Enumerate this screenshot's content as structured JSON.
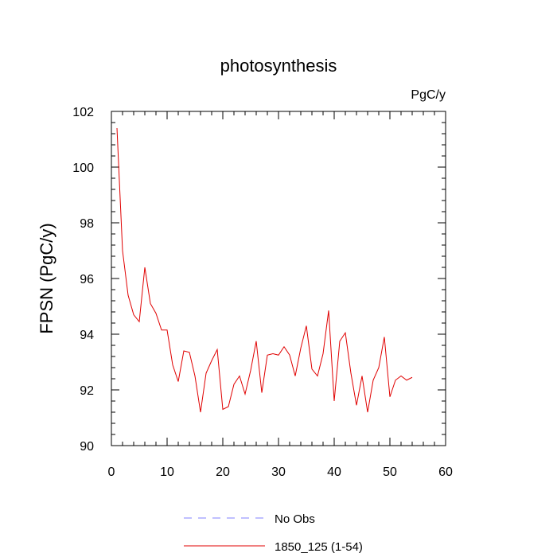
{
  "chart_data": {
    "type": "line",
    "title": "photosynthesis",
    "units": "PgC/y",
    "ylabel": "FPSN  (PgC/y)",
    "xlabel": "",
    "xlim": [
      0,
      60
    ],
    "ylim": [
      90,
      102
    ],
    "xticks": [
      0,
      10,
      20,
      30,
      40,
      50,
      60
    ],
    "yticks": [
      90,
      92,
      94,
      96,
      98,
      100,
      102
    ],
    "grid": false,
    "legend_placement": "bottom-center",
    "series": [
      {
        "name": "No Obs",
        "color": "#8080ff",
        "dashed": true,
        "values": []
      },
      {
        "name": "1850_125 (1-54)",
        "color": "#e00000",
        "dashed": false,
        "x": [
          1,
          2,
          3,
          4,
          5,
          6,
          7,
          8,
          9,
          10,
          11,
          12,
          13,
          14,
          15,
          16,
          17,
          18,
          19,
          20,
          21,
          22,
          23,
          24,
          25,
          26,
          27,
          28,
          29,
          30,
          31,
          32,
          33,
          34,
          35,
          36,
          37,
          38,
          39,
          40,
          41,
          42,
          43,
          44,
          45,
          46,
          47,
          48,
          49,
          50,
          51,
          52,
          53,
          54
        ],
        "values": [
          101.4,
          97.0,
          95.4,
          94.7,
          94.45,
          96.4,
          95.1,
          94.75,
          94.15,
          94.15,
          92.9,
          92.3,
          93.4,
          93.35,
          92.5,
          91.2,
          92.6,
          93.05,
          93.45,
          91.3,
          91.4,
          92.2,
          92.5,
          91.85,
          92.7,
          93.75,
          91.9,
          93.25,
          93.3,
          93.25,
          93.55,
          93.25,
          92.5,
          93.5,
          94.3,
          92.75,
          92.5,
          93.3,
          94.85,
          91.6,
          93.75,
          94.05,
          92.6,
          91.45,
          92.5,
          91.2,
          92.35,
          92.8,
          93.9,
          91.75,
          92.35,
          92.5,
          92.35,
          92.45
        ]
      }
    ]
  }
}
